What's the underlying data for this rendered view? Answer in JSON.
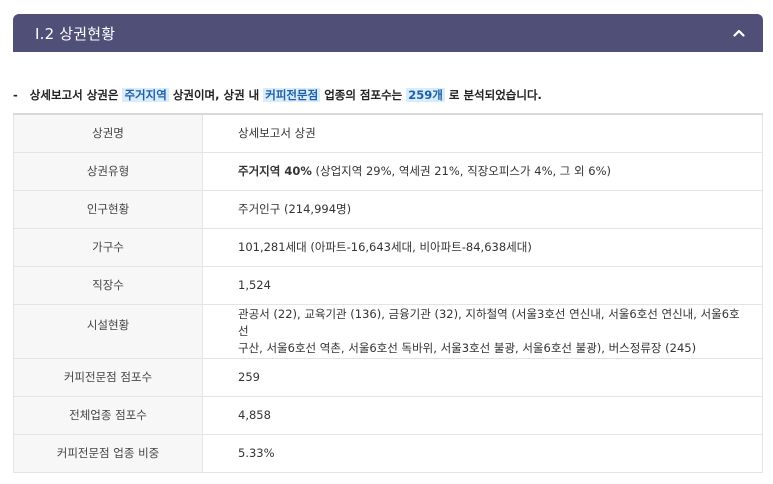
{
  "section": {
    "title": "Ⅰ.2 상권현황",
    "collapse_icon": "chevron-up-icon"
  },
  "summary": {
    "dash": "-",
    "part1": "상세보고서 상권은",
    "highlight1": "주거지역",
    "part2": "상권이며, 상권 내",
    "highlight2": "커피전문점",
    "part3": "업종의 점포수는",
    "highlight3": "259개",
    "part4": "로 분석되었습니다."
  },
  "table": {
    "rows": [
      {
        "label": "상권명",
        "value": "상세보고서 상권"
      },
      {
        "label": "상권유형",
        "value_bold": "주거지역 40%",
        "value": " (상업지역 29%, 역세권 21%, 직장오피스가 4%, 그 외 6%)"
      },
      {
        "label": "인구현황",
        "value": "주거인구 (214,994명)"
      },
      {
        "label": "가구수",
        "value": "101,281세대 (아파트-16,643세대, 비아파트-84,638세대)"
      },
      {
        "label": "직장수",
        "value": "1,524"
      },
      {
        "label": "시설현황",
        "value_line1": "관공서 (22), 교육기관 (136), 금융기관 (32), 지하철역 (서울3호선 연신내, 서울6호선 연신내, 서울6호선",
        "value_line2": "구산, 서울6호선 역촌, 서울6호선 독바위, 서울3호선 불광, 서울6호선 불광), 버스정류장 (245)"
      },
      {
        "label": "커피전문점 점포수",
        "value": "259"
      },
      {
        "label": "전체업종 점포수",
        "value": "4,858"
      },
      {
        "label": "커피전문점 업종 비중",
        "value": "5.33%"
      }
    ]
  }
}
